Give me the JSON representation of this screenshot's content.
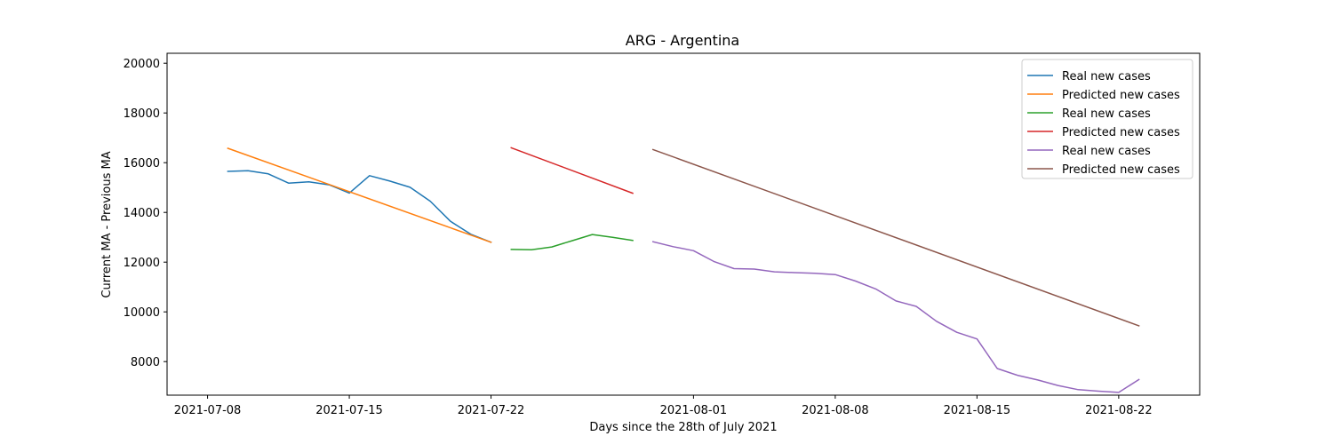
{
  "chart_data": {
    "type": "line",
    "title": "ARG - Argentina",
    "xlabel": "Days since the 28th of July 2021",
    "ylabel": "Current MA - Previous MA",
    "x_type": "date",
    "xlim": [
      "2021-07-06",
      "2021-08-26"
    ],
    "ylim": [
      6650,
      20400
    ],
    "x_ticks": [
      {
        "date": "2021-07-08",
        "label": "2021-07-08"
      },
      {
        "date": "2021-07-15",
        "label": "2021-07-15"
      },
      {
        "date": "2021-07-22",
        "label": "2021-07-22"
      },
      {
        "date": "2021-08-01",
        "label": "2021-08-01"
      },
      {
        "date": "2021-08-08",
        "label": "2021-08-08"
      },
      {
        "date": "2021-08-15",
        "label": "2021-08-15"
      },
      {
        "date": "2021-08-22",
        "label": "2021-08-22"
      }
    ],
    "y_ticks": [
      8000,
      10000,
      12000,
      14000,
      16000,
      18000,
      20000
    ],
    "grid": false,
    "legend_position": "top-right",
    "series": [
      {
        "name": "Real new cases",
        "color": "#1f77b4",
        "x": [
          "2021-07-09",
          "2021-07-10",
          "2021-07-11",
          "2021-07-12",
          "2021-07-13",
          "2021-07-14",
          "2021-07-15",
          "2021-07-16",
          "2021-07-17",
          "2021-07-18",
          "2021-07-19",
          "2021-07-20",
          "2021-07-21",
          "2021-07-22"
        ],
        "y": [
          15650,
          15680,
          15550,
          15180,
          15230,
          15110,
          14780,
          15480,
          15260,
          15010,
          14450,
          13640,
          13120,
          12800
        ]
      },
      {
        "name": "Predicted new cases",
        "color": "#ff7f0e",
        "x": [
          "2021-07-09",
          "2021-07-22"
        ],
        "y": [
          16580,
          12800
        ]
      },
      {
        "name": "Real new cases",
        "color": "#2ca02c",
        "x": [
          "2021-07-23",
          "2021-07-24",
          "2021-07-25",
          "2021-07-26",
          "2021-07-27",
          "2021-07-28",
          "2021-07-29"
        ],
        "y": [
          12510,
          12500,
          12610,
          12860,
          13110,
          13000,
          12870
        ]
      },
      {
        "name": "Predicted new cases",
        "color": "#d62728",
        "x": [
          "2021-07-23",
          "2021-07-29"
        ],
        "y": [
          16600,
          14770
        ]
      },
      {
        "name": "Real new cases",
        "color": "#9467bd",
        "x": [
          "2021-07-30",
          "2021-07-31",
          "2021-08-01",
          "2021-08-02",
          "2021-08-03",
          "2021-08-04",
          "2021-08-05",
          "2021-08-06",
          "2021-08-07",
          "2021-08-08",
          "2021-08-09",
          "2021-08-10",
          "2021-08-11",
          "2021-08-12",
          "2021-08-13",
          "2021-08-14",
          "2021-08-15",
          "2021-08-16",
          "2021-08-17",
          "2021-08-18",
          "2021-08-19",
          "2021-08-20",
          "2021-08-21",
          "2021-08-22",
          "2021-08-23"
        ],
        "y": [
          12820,
          12620,
          12460,
          12030,
          11740,
          11720,
          11610,
          11580,
          11550,
          11500,
          11240,
          10920,
          10440,
          10220,
          9620,
          9180,
          8910,
          7720,
          7450,
          7260,
          7040,
          6870,
          6810,
          6760,
          7280
        ]
      },
      {
        "name": "Predicted new cases",
        "color": "#8c564b",
        "x": [
          "2021-07-30",
          "2021-08-23"
        ],
        "y": [
          16530,
          9440
        ]
      }
    ]
  }
}
